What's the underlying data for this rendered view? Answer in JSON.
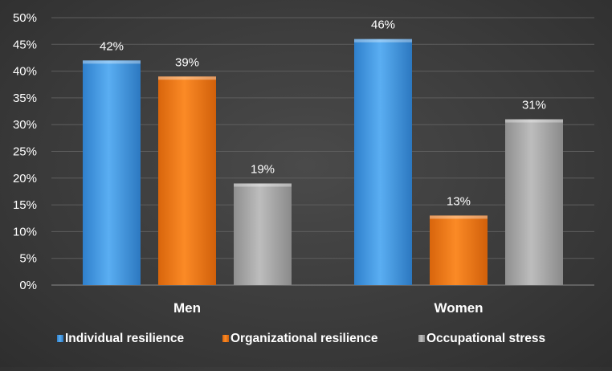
{
  "chart_data": {
    "type": "bar",
    "categories": [
      "Men",
      "Women"
    ],
    "series": [
      {
        "name": "Individual resilience",
        "values": [
          42,
          46
        ],
        "color": "#4a9ee6"
      },
      {
        "name": "Organizational resilience",
        "values": [
          39,
          13
        ],
        "color": "#f07c1c"
      },
      {
        "name": "Occupational stress",
        "values": [
          19,
          31
        ],
        "color": "#a9a9a9"
      }
    ],
    "value_format": "percent",
    "data_labels": [
      "42%",
      "46%",
      "39%",
      "13%",
      "19%",
      "31%"
    ],
    "ylim": [
      0,
      50
    ],
    "yticks": [
      "0%",
      "5%",
      "10%",
      "15%",
      "20%",
      "25%",
      "30%",
      "35%",
      "40%",
      "45%",
      "50%"
    ],
    "grid": true,
    "legend_position": "bottom",
    "title": "",
    "xlabel": "",
    "ylabel": ""
  }
}
